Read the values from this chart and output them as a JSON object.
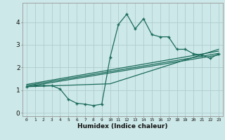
{
  "xlabel": "Humidex (Indice chaleur)",
  "background_color": "#cde8e8",
  "grid_color": "#b0cccc",
  "line_color": "#1a6b5a",
  "xlim": [
    -0.5,
    23.5
  ],
  "ylim": [
    -0.15,
    4.85
  ],
  "xtick_labels": [
    "0",
    "1",
    "2",
    "3",
    "4",
    "5",
    "6",
    "7",
    "8",
    "9",
    "10",
    "11",
    "12",
    "13",
    "14",
    "15",
    "16",
    "17",
    "18",
    "19",
    "20",
    "21",
    "22",
    "23"
  ],
  "ytick_values": [
    0,
    1,
    2,
    3,
    4
  ],
  "main_line_x": [
    0,
    1,
    2,
    3,
    4,
    5,
    6,
    7,
    8,
    9,
    10,
    11,
    12,
    13,
    14,
    15,
    16,
    17,
    18,
    19,
    20,
    21,
    22,
    23
  ],
  "main_line_y": [
    1.15,
    1.2,
    1.2,
    1.2,
    1.05,
    0.6,
    0.42,
    0.38,
    0.32,
    0.38,
    2.45,
    3.9,
    4.35,
    3.7,
    4.15,
    3.45,
    3.35,
    3.35,
    2.8,
    2.8,
    2.6,
    2.55,
    2.4,
    2.6
  ],
  "reg_lines": [
    {
      "x": [
        0,
        23
      ],
      "y": [
        1.15,
        2.55
      ]
    },
    {
      "x": [
        0,
        23
      ],
      "y": [
        1.2,
        2.62
      ]
    },
    {
      "x": [
        0,
        23
      ],
      "y": [
        1.25,
        2.72
      ]
    },
    {
      "x": [
        0,
        10,
        23
      ],
      "y": [
        1.15,
        1.28,
        2.8
      ]
    }
  ]
}
